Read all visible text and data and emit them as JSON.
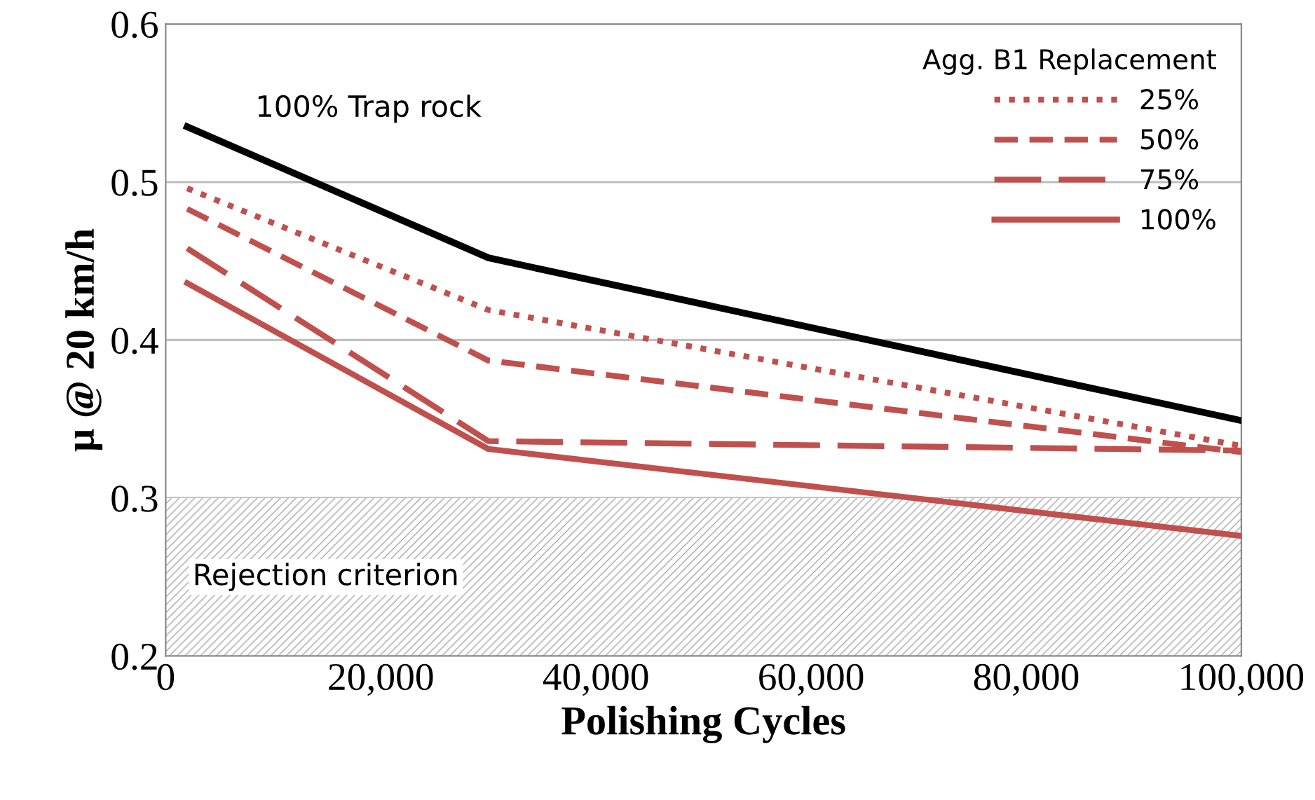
{
  "chart_data": {
    "type": "line",
    "xlabel": "Polishing Cycles",
    "ylabel": "μ @ 20 km/h",
    "legend_title": "Agg. B1 Replacement",
    "x": [
      2000,
      30000,
      100000
    ],
    "series": [
      {
        "color": "#000000",
        "values": [
          0.535,
          0.452,
          0.349
        ],
        "line_style": "solid"
      },
      {
        "name": "25%",
        "color": "#c0504d",
        "values": [
          0.496,
          0.419,
          0.333
        ],
        "line_style": "dotted"
      },
      {
        "name": "50%",
        "color": "#c0504d",
        "values": [
          0.483,
          0.387,
          0.329
        ],
        "line_style": "dashed"
      },
      {
        "name": "75%",
        "color": "#c0504d",
        "values": [
          0.458,
          0.336,
          0.33
        ],
        "line_style": "long dashed"
      },
      {
        "name": "100%",
        "color": "#c0504d",
        "values": [
          0.436,
          0.331,
          0.276
        ],
        "line_style": "solid"
      }
    ],
    "annotations": [
      {
        "text": "100% Trap rock",
        "x": 2000,
        "y": 0.535
      }
    ],
    "bands": [
      {
        "axis": "y",
        "from": 0.2,
        "to": 0.3,
        "label": "Rejection criterion",
        "color": "#a6a6a6"
      }
    ],
    "xlim": [
      0,
      100000
    ],
    "xticks": [
      {
        "value": 0,
        "label": "0"
      },
      {
        "value": 20000,
        "label": "20,000"
      },
      {
        "value": 40000,
        "label": "40,000"
      },
      {
        "value": 60000,
        "label": "60,000"
      },
      {
        "value": 80000,
        "label": "80,000"
      },
      {
        "value": 100000,
        "label": "100,000"
      }
    ],
    "ylim": [
      0.2,
      0.6
    ],
    "yticks": [
      {
        "value": 0.2,
        "label": "0.2"
      },
      {
        "value": 0.3,
        "label": "0.3"
      },
      {
        "value": 0.4,
        "label": "0.4"
      },
      {
        "value": 0.5,
        "label": "0.5"
      },
      {
        "value": 0.6,
        "label": "0.6"
      }
    ],
    "grid": "y",
    "legend": "top right",
    "marker": "none"
  }
}
